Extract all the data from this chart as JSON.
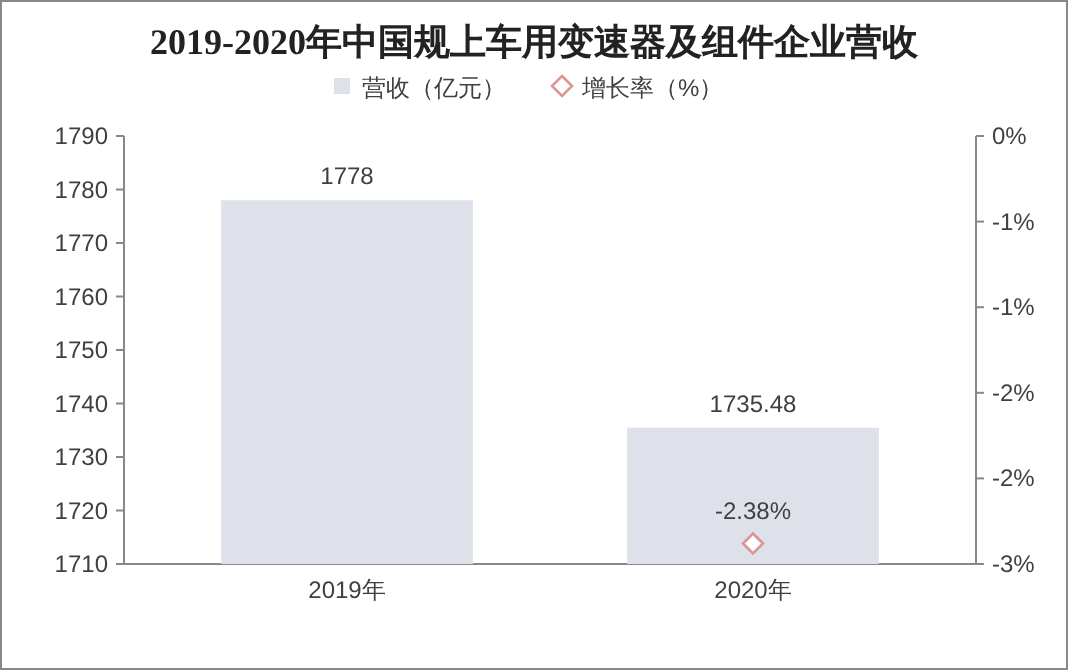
{
  "chart_data": {
    "type": "bar",
    "title": "2019-2020年中国规上车用变速器及组件企业营收",
    "categories": [
      "2019年",
      "2020年"
    ],
    "series": [
      {
        "name": "营收（亿元）",
        "color": "#dfe1ea",
        "values": [
          1778,
          1735.48
        ],
        "value_labels": [
          "1778",
          "1735.48"
        ]
      },
      {
        "name": "增长率（%）",
        "type": "line",
        "axis": "y2",
        "color": "#d99694",
        "marker": "diamond",
        "values": [
          null,
          -2.38
        ],
        "value_labels": [
          null,
          "-2.38%"
        ]
      }
    ],
    "ylim": [
      1710,
      1790
    ],
    "yticks": [
      1710,
      1720,
      1730,
      1740,
      1750,
      1760,
      1770,
      1780,
      1790
    ],
    "y2lim": [
      -2.5,
      0
    ],
    "y2ticks": [
      {
        "value": 0,
        "label": "0%"
      },
      {
        "value": -0.5,
        "label": "-1%"
      },
      {
        "value": -1,
        "label": "-1%"
      },
      {
        "value": -1.5,
        "label": "-2%"
      },
      {
        "value": -2,
        "label": "-2%"
      },
      {
        "value": -2.5,
        "label": "-3%"
      }
    ],
    "legend": "top",
    "grid": false
  }
}
